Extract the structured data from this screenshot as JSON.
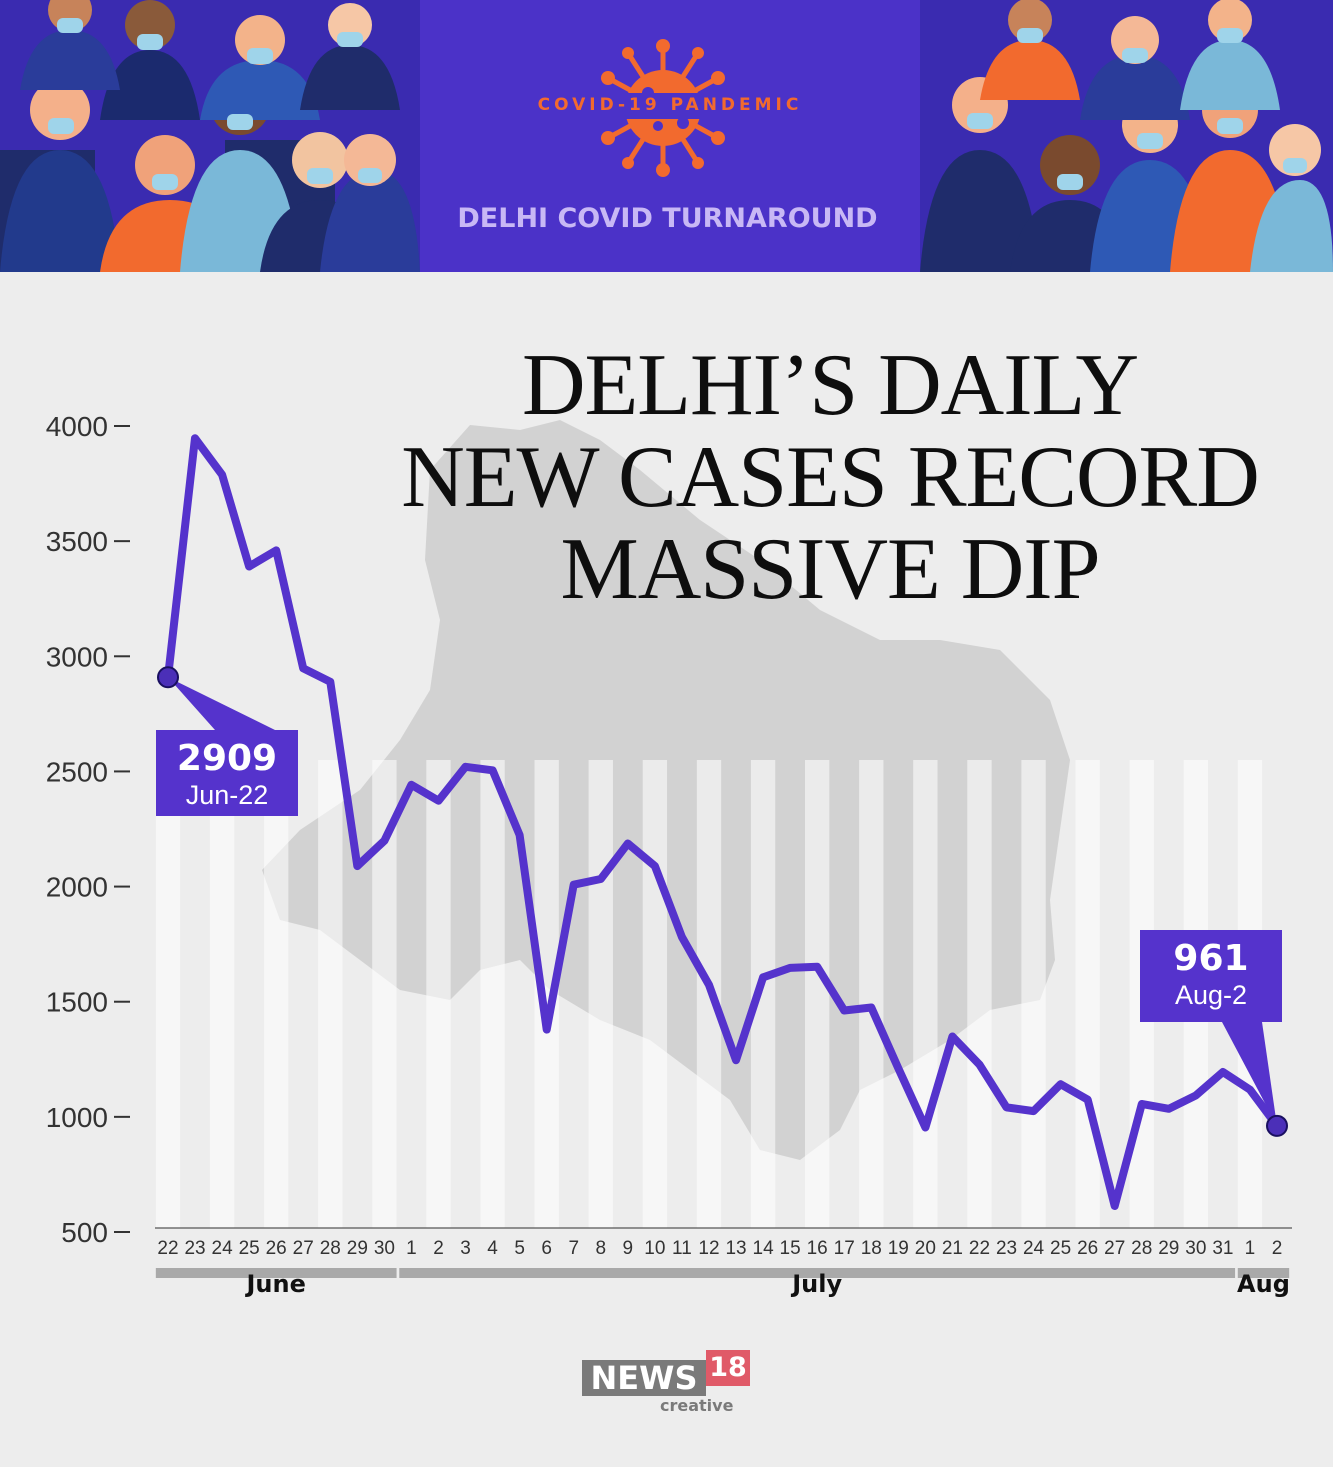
{
  "header": {
    "badge": "COVID-19 PANDEMIC",
    "subtitle": "DELHI COVID TURNAROUND"
  },
  "title": {
    "line1": "DELHI’S DAILY",
    "line2": "NEW CASES RECORD",
    "line3": "MASSIVE DIP"
  },
  "colors": {
    "header_bg": "#4b32c8",
    "line": "#5533cc",
    "accent_orange": "#f26a2e",
    "annotation_bg": "#5533cc"
  },
  "chart_data": {
    "type": "line",
    "title": "DELHI’S DAILY NEW CASES RECORD MASSIVE DIP",
    "ylim": [
      500,
      4000
    ],
    "yticks": [
      "4000",
      "3500",
      "3000",
      "2500",
      "2000",
      "1500",
      "1000",
      "500"
    ],
    "ytick_values": [
      4000,
      3500,
      3000,
      2500,
      2000,
      1500,
      1000,
      500
    ],
    "categories": [
      "22",
      "23",
      "24",
      "25",
      "26",
      "27",
      "28",
      "29",
      "30",
      "1",
      "2",
      "3",
      "4",
      "5",
      "6",
      "7",
      "8",
      "9",
      "10",
      "11",
      "12",
      "13",
      "14",
      "15",
      "16",
      "17",
      "18",
      "19",
      "20",
      "21",
      "22",
      "23",
      "24",
      "25",
      "26",
      "27",
      "28",
      "29",
      "30",
      "31",
      "1",
      "2"
    ],
    "values": [
      2909,
      3947,
      3788,
      3390,
      3460,
      2948,
      2889,
      2089,
      2199,
      2442,
      2373,
      2520,
      2505,
      2224,
      1379,
      2008,
      2033,
      2187,
      2089,
      1781,
      1573,
      1246,
      1606,
      1647,
      1652,
      1462,
      1475,
      1211,
      954,
      1349,
      1227,
      1041,
      1025,
      1142,
      1075,
      613,
      1056,
      1035,
      1093,
      1195,
      1118,
      961
    ],
    "months": [
      {
        "name": "June",
        "start": 0,
        "end": 8
      },
      {
        "name": "July",
        "start": 9,
        "end": 39
      },
      {
        "name": "Aug",
        "start": 40,
        "end": 41
      }
    ],
    "annotations": [
      {
        "value": "2909",
        "label": "Jun-22",
        "index": 0
      },
      {
        "value": "961",
        "label": "Aug-2",
        "index": 41
      }
    ],
    "series": [
      {
        "name": "Daily new cases",
        "color": "#5533cc"
      }
    ]
  },
  "logo": {
    "news": "NEWS",
    "number": "18",
    "creative": "creative"
  }
}
